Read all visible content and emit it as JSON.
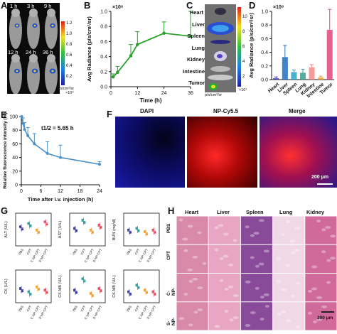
{
  "panels": {
    "A": {
      "label": "A",
      "times": [
        "1 h",
        "3 h",
        "9 h",
        "12 h",
        "24 h",
        "36 h"
      ],
      "scale_ticks": [
        "1.2",
        "1.0",
        "0.8",
        "0.6",
        "0.4",
        "0.2"
      ],
      "scale_unit": "p/s/cm²/sr",
      "scale_exp": "×10⁹"
    },
    "B": {
      "label": "B"
    },
    "C": {
      "label": "C",
      "organs": [
        "Heart",
        "Liver",
        "Spleen",
        "Lung",
        "Kidney",
        "Intestine",
        "Tumor"
      ],
      "scale_ticks": [
        "10",
        "8",
        "6",
        "4",
        "2"
      ],
      "scale_exp": "×10⁷",
      "scale_unit": "p/s/cm²/sr"
    },
    "D": {
      "label": "D"
    },
    "E": {
      "label": "E",
      "annotation": "t1/2 = 5.65 h"
    },
    "F": {
      "label": "F",
      "titles": [
        "DAPI",
        "NP-Cy5.5",
        "Merge"
      ],
      "scalebar": "200 μm"
    },
    "G": {
      "label": "G",
      "assays": [
        "ALT (U/L)",
        "AST (U/L)",
        "BUN (mg/dl)",
        "CK (U/L)",
        "CK-MB (U/L)",
        "CK-MB (U/L)"
      ],
      "groups": [
        "PBS",
        "CPT",
        "C-NP-CPT",
        "S-NP-CPT"
      ]
    },
    "H": {
      "label": "H",
      "columns": [
        "Heart",
        "Liver",
        "Spleen",
        "Lung",
        "Kidney"
      ],
      "rows": [
        "PBS",
        "CPT",
        "C-NP-CPT",
        "S-NP-CPT"
      ],
      "scalebar": "200 μm"
    }
  },
  "chart_data": [
    {
      "type": "line",
      "panel": "B",
      "x": [
        1,
        3,
        9,
        12,
        24,
        36
      ],
      "y": [
        0.13,
        0.19,
        0.41,
        0.56,
        0.71,
        0.67
      ],
      "yerr": [
        0.04,
        0.08,
        0.15,
        0.17,
        0.15,
        0.33
      ],
      "xlabel": "Time (h)",
      "ylabel": "Avg Radiance (p/s/cm²/sr)",
      "y_exponent": "×10⁸",
      "xlim": [
        0,
        36
      ],
      "ylim": [
        0.0,
        1.0
      ],
      "xticks": [
        "0",
        "12",
        "24",
        "36"
      ],
      "yticks": [
        "0.0",
        "0.2",
        "0.4",
        "0.6",
        "0.8",
        "1.0"
      ],
      "color": "#2ca02c"
    },
    {
      "type": "bar",
      "panel": "D",
      "categories": [
        "Heart",
        "Liver",
        "Spleen",
        "Lung",
        "Kidney",
        "Intestine",
        "Tumor"
      ],
      "values": [
        0.02,
        0.33,
        0.11,
        0.1,
        0.18,
        0.03,
        0.73
      ],
      "errors": [
        0.02,
        0.17,
        0.03,
        0.05,
        0.04,
        0.02,
        0.3
      ],
      "colors": [
        "#3b3bb0",
        "#1f6fc0",
        "#2aa3c8",
        "#3a9e8f",
        "#f28a8a",
        "#f0a030",
        "#e2457f"
      ],
      "ylabel": "Avg Radiance (p/s/cm²/sr)",
      "y_exponent": "×10⁸",
      "ylim": [
        0.0,
        1.0
      ],
      "yticks": [
        "0.0",
        "0.2",
        "0.4",
        "0.6",
        "0.8",
        "1.0"
      ]
    },
    {
      "type": "line",
      "panel": "E",
      "x": [
        0.083,
        0.5,
        1,
        2,
        4,
        8,
        12,
        24
      ],
      "y": [
        100,
        90,
        81,
        72,
        60,
        46,
        40,
        30
      ],
      "yerr": [
        2,
        8,
        10,
        12,
        15,
        17,
        18,
        4
      ],
      "xlabel": "Time after i.v. injection (h)",
      "ylabel": "Relative fluorescence intensity (%)",
      "xlim": [
        0,
        24
      ],
      "ylim": [
        0,
        100
      ],
      "xticks": [
        "0",
        "6",
        "12",
        "18",
        "24"
      ],
      "yticks": [
        "0",
        "20",
        "40",
        "60",
        "80",
        "100"
      ],
      "color": "#4a90c8"
    }
  ]
}
